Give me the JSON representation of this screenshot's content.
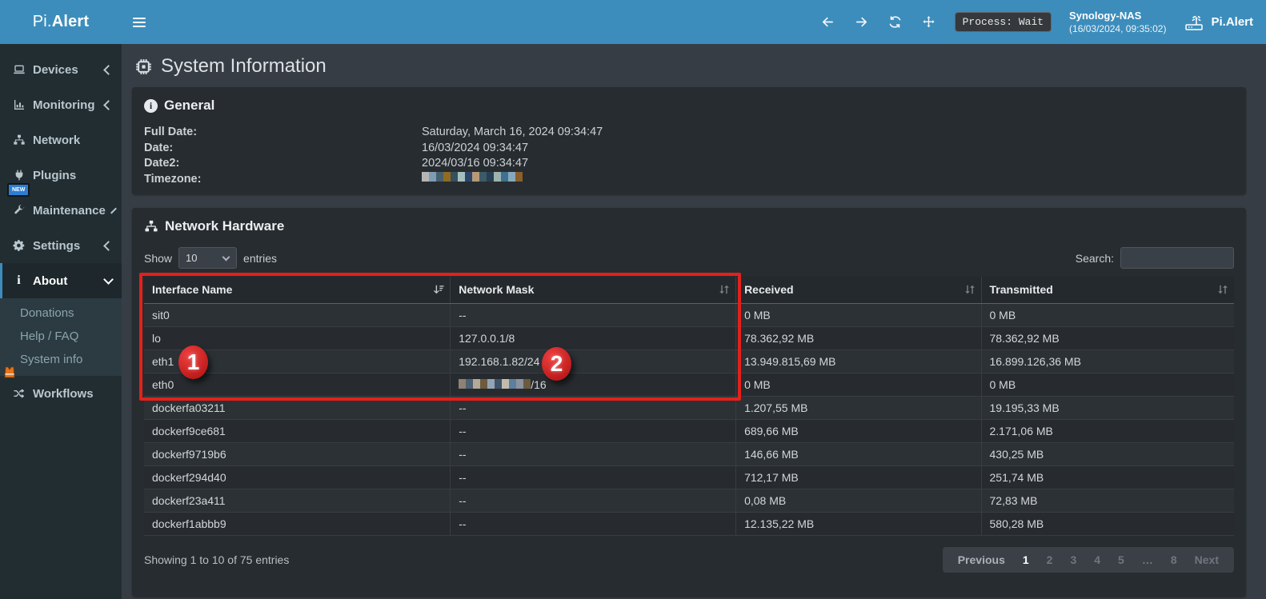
{
  "navbar": {
    "logo_prefix": "Pi.",
    "logo_bold": "Alert",
    "process_badge": "Process: Wait",
    "device_name": "Synology-NAS",
    "device_time": "(16/03/2024, 09:35:02)",
    "brand_right": "Pi.Alert"
  },
  "sidebar": {
    "items": [
      {
        "label": "Devices",
        "icon": "laptop-icon",
        "chevron": "left"
      },
      {
        "label": "Monitoring",
        "icon": "chart-icon",
        "chevron": "left"
      },
      {
        "label": "Network",
        "icon": "sitemap-icon",
        "chevron": ""
      },
      {
        "label": "Plugins",
        "icon": "plug-icon",
        "chevron": ""
      },
      {
        "label": "Maintenance",
        "icon": "wrench-icon",
        "chevron": "left",
        "badge": "NEW"
      },
      {
        "label": "Settings",
        "icon": "gear-icon",
        "chevron": "left"
      },
      {
        "label": "About",
        "icon": "info-icon",
        "chevron": "down"
      }
    ],
    "submenu": [
      "Donations",
      "Help / FAQ",
      "System info"
    ],
    "workflows_label": "Workflows"
  },
  "page": {
    "title": "System Information"
  },
  "general": {
    "title": "General",
    "rows": [
      {
        "label": "Full Date:",
        "value": "Saturday, March 16, 2024 09:34:47"
      },
      {
        "label": "Date:",
        "value": "16/03/2024 09:34:47"
      },
      {
        "label": "Date2:",
        "value": "2024/03/16 09:34:47"
      },
      {
        "label": "Timezone:",
        "value": ""
      }
    ]
  },
  "network_hardware": {
    "title": "Network Hardware",
    "show_label": "Show",
    "page_size": "10",
    "entries_label": "entries",
    "search_label": "Search:",
    "search_value": "",
    "columns": [
      "Interface Name",
      "Network Mask",
      "Received",
      "Transmitted"
    ],
    "rows": [
      [
        "sit0",
        "--",
        "0 MB",
        "0 MB"
      ],
      [
        "lo",
        "127.0.0.1/8",
        "78.362,92 MB",
        "78.362,92 MB"
      ],
      [
        "eth1",
        "192.168.1.82/24",
        "13.949.815,69 MB",
        "16.899.126,36 MB"
      ],
      [
        "eth0",
        "/16",
        "0 MB",
        "0 MB"
      ],
      [
        "dockerfa03211",
        "--",
        "1.207,55 MB",
        "19.195,33 MB"
      ],
      [
        "dockerf9ce681",
        "--",
        "689,66 MB",
        "2.171,06 MB"
      ],
      [
        "dockerf9719b6",
        "--",
        "146,66 MB",
        "430,25 MB"
      ],
      [
        "dockerf294d40",
        "--",
        "712,17 MB",
        "251,74 MB"
      ],
      [
        "dockerf23a411",
        "--",
        "0,08 MB",
        "72,83 MB"
      ],
      [
        "dockerf1abbb9",
        "--",
        "12.135,22 MB",
        "580,28 MB"
      ]
    ],
    "info_text": "Showing 1 to 10 of 75 entries",
    "pagination": [
      "Previous",
      "1",
      "2",
      "3",
      "4",
      "5",
      "…",
      "8",
      "Next"
    ]
  },
  "annotations": {
    "badge1": "1",
    "badge2": "2"
  },
  "redactions": {
    "timezone_blocks": [
      "#b7b5b3",
      "#7d9db5",
      "#46606e",
      "#8f6c22",
      "#37505c",
      "#a3c0bd",
      "#2c466b",
      "#b59a77",
      "#3d5a66",
      "#274055",
      "#9fb3ae",
      "#3f708f",
      "#88a8c0",
      "#8a5f2a"
    ],
    "eth0_blocks": [
      "#8d8273",
      "#4f6273",
      "#b3aa99",
      "#6e5b3d",
      "#93a5b5",
      "#3f5468",
      "#c3bcab",
      "#5d7f9f",
      "#8a949e",
      "#6b5a40"
    ]
  },
  "colors": {
    "accent": "#3c8dbc",
    "annotation_red": "#e2211c",
    "sidebar_bg": "#222d32",
    "panel_bg": "#272c30"
  }
}
